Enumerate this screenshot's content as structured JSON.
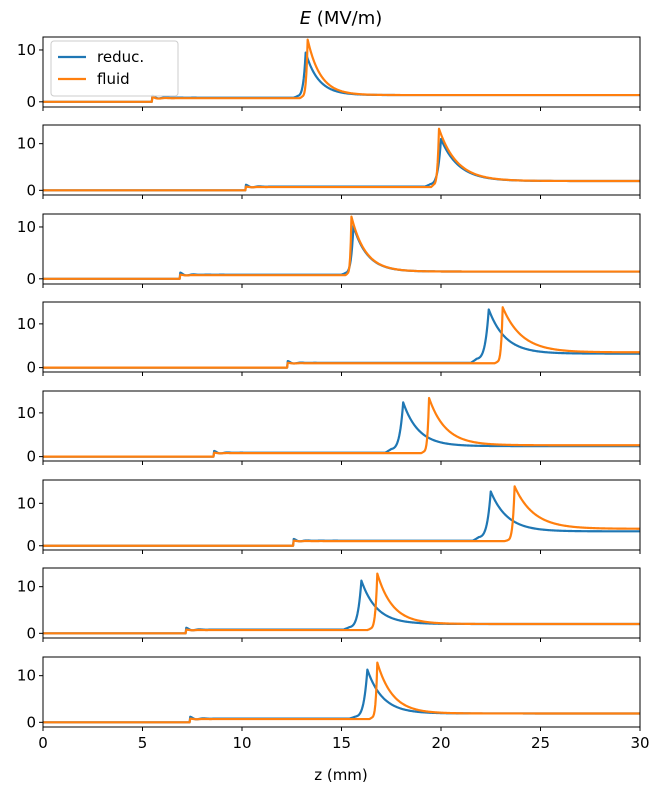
{
  "figure": {
    "title_symbol": "E",
    "title_unit": " (MV/m)",
    "xlabel": "z (mm)"
  },
  "legend": [
    {
      "label": "reduc.",
      "color": "#1f77b4"
    },
    {
      "label": "fluid",
      "color": "#ff7f0e"
    }
  ],
  "chart_data": {
    "type": "line",
    "title": "E (MV/m)",
    "xlabel": "z (mm)",
    "xlim": [
      0,
      30
    ],
    "xticks": [
      0,
      5,
      10,
      15,
      20,
      25,
      30
    ],
    "legend_position": "top-left (first panel)",
    "grid": false,
    "series_colors": {
      "reduc.": "#1f77b4",
      "fluid": "#ff7f0e"
    },
    "panels": [
      {
        "ylim": [
          -1,
          12.5
        ],
        "yticks": [
          0,
          10
        ],
        "series": [
          {
            "name": "reduc.",
            "front": 5.5,
            "level": 0.8,
            "ripple": 0.4,
            "pre_start": 12.6,
            "pre_level": 1.1,
            "peak_z": 13.2,
            "peak": 9.5,
            "end_level": 1.3,
            "decay": 2.0
          },
          {
            "name": "fluid",
            "front": 5.5,
            "level": 0.7,
            "ripple": 0.2,
            "pre_start": 12.9,
            "pre_level": 1.0,
            "peak_z": 13.3,
            "peak": 12.0,
            "end_level": 1.3,
            "decay": 2.0
          }
        ]
      },
      {
        "ylim": [
          -1,
          14
        ],
        "yticks": [
          0,
          10
        ],
        "series": [
          {
            "name": "reduc.",
            "front": 10.2,
            "level": 0.8,
            "ripple": 0.4,
            "pre_start": 19.2,
            "pre_level": 1.3,
            "peak_z": 20.0,
            "peak": 11.0,
            "end_level": 2.0,
            "decay": 2.8
          },
          {
            "name": "fluid",
            "front": 10.2,
            "level": 0.7,
            "ripple": 0.1,
            "pre_start": 19.5,
            "pre_level": 1.2,
            "peak_z": 19.9,
            "peak": 13.2,
            "end_level": 2.0,
            "decay": 2.8
          }
        ]
      },
      {
        "ylim": [
          -1,
          12.5
        ],
        "yticks": [
          0,
          10
        ],
        "series": [
          {
            "name": "reduc.",
            "front": 6.9,
            "level": 0.8,
            "ripple": 0.4,
            "pre_start": 15.0,
            "pre_level": 1.1,
            "peak_z": 15.6,
            "peak": 10.2,
            "end_level": 1.4,
            "decay": 2.2
          },
          {
            "name": "fluid",
            "front": 6.9,
            "level": 0.7,
            "ripple": 0.1,
            "pre_start": 15.2,
            "pre_level": 1.0,
            "peak_z": 15.5,
            "peak": 12.0,
            "end_level": 1.4,
            "decay": 2.2
          }
        ]
      },
      {
        "ylim": [
          -1,
          15
        ],
        "yticks": [
          0,
          10
        ],
        "series": [
          {
            "name": "reduc.",
            "front": 12.3,
            "level": 1.1,
            "ripple": 0.4,
            "pre_start": 21.5,
            "pre_level": 2.0,
            "peak_z": 22.4,
            "peak": 13.3,
            "end_level": 3.2,
            "decay": 2.6
          },
          {
            "name": "fluid",
            "front": 12.3,
            "level": 1.0,
            "ripple": 0.1,
            "pre_start": 22.7,
            "pre_level": 1.3,
            "peak_z": 23.1,
            "peak": 13.8,
            "end_level": 3.5,
            "decay": 3.0
          }
        ]
      },
      {
        "ylim": [
          -1,
          15
        ],
        "yticks": [
          0,
          10
        ],
        "series": [
          {
            "name": "reduc.",
            "front": 8.6,
            "level": 0.9,
            "ripple": 0.4,
            "pre_start": 17.2,
            "pre_level": 1.7,
            "peak_z": 18.1,
            "peak": 12.4,
            "end_level": 2.4,
            "decay": 2.4
          },
          {
            "name": "fluid",
            "front": 8.6,
            "level": 0.8,
            "ripple": 0.1,
            "pre_start": 19.0,
            "pre_level": 1.1,
            "peak_z": 19.4,
            "peak": 13.4,
            "end_level": 2.6,
            "decay": 2.6
          }
        ]
      },
      {
        "ylim": [
          -1,
          15.5
        ],
        "yticks": [
          0,
          10
        ],
        "series": [
          {
            "name": "reduc.",
            "front": 12.6,
            "level": 1.2,
            "ripple": 0.4,
            "pre_start": 21.6,
            "pre_level": 2.0,
            "peak_z": 22.5,
            "peak": 12.8,
            "end_level": 3.4,
            "decay": 2.6
          },
          {
            "name": "fluid",
            "front": 12.6,
            "level": 1.1,
            "ripple": 0.1,
            "pre_start": 23.2,
            "pre_level": 1.3,
            "peak_z": 23.7,
            "peak": 14.0,
            "end_level": 4.0,
            "decay": 3.0
          }
        ]
      },
      {
        "ylim": [
          -1,
          14
        ],
        "yticks": [
          0,
          10
        ],
        "series": [
          {
            "name": "reduc.",
            "front": 7.2,
            "level": 0.8,
            "ripple": 0.4,
            "pre_start": 15.1,
            "pre_level": 1.3,
            "peak_z": 16.0,
            "peak": 11.3,
            "end_level": 2.0,
            "decay": 2.4
          },
          {
            "name": "fluid",
            "front": 7.2,
            "level": 0.7,
            "ripple": 0.1,
            "pre_start": 16.3,
            "pre_level": 1.0,
            "peak_z": 16.8,
            "peak": 12.8,
            "end_level": 2.0,
            "decay": 2.4
          }
        ]
      },
      {
        "ylim": [
          -1,
          14
        ],
        "yticks": [
          0,
          10
        ],
        "series": [
          {
            "name": "reduc.",
            "front": 7.4,
            "level": 0.8,
            "ripple": 0.4,
            "pre_start": 15.4,
            "pre_level": 1.2,
            "peak_z": 16.3,
            "peak": 11.3,
            "end_level": 1.9,
            "decay": 2.4
          },
          {
            "name": "fluid",
            "front": 7.4,
            "level": 0.7,
            "ripple": 0.1,
            "pre_start": 16.4,
            "pre_level": 1.0,
            "peak_z": 16.8,
            "peak": 12.8,
            "end_level": 1.9,
            "decay": 2.4
          }
        ]
      }
    ]
  }
}
